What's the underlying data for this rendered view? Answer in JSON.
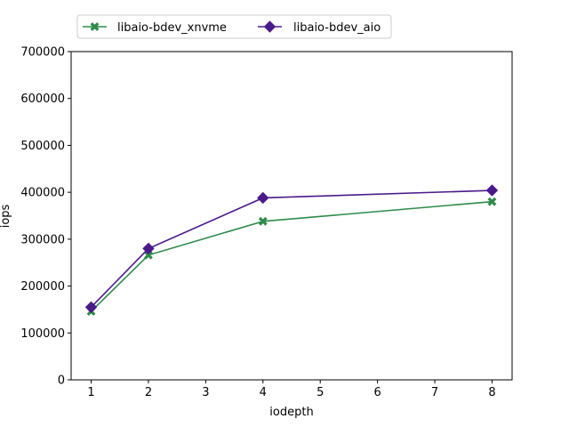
{
  "chart_data": {
    "type": "line",
    "x": [
      1,
      2,
      4,
      8
    ],
    "series": [
      {
        "name": "libaio-bdev_xnvme",
        "values": [
          146000,
          266000,
          338000,
          380000
        ],
        "color": "#2e8b4a",
        "marker": "x-filled"
      },
      {
        "name": "libaio-bdev_aio",
        "values": [
          155000,
          280000,
          388000,
          404000
        ],
        "color": "#4b1a8a",
        "marker": "diamond"
      }
    ],
    "xlabel": "iodepth",
    "ylabel": "iops",
    "xlim": [
      0.65,
      8.35
    ],
    "ylim": [
      0,
      700000
    ],
    "xticks": [
      1,
      2,
      3,
      4,
      5,
      6,
      7,
      8
    ],
    "yticks": [
      0,
      100000,
      200000,
      300000,
      400000,
      500000,
      600000,
      700000
    ],
    "grid": false,
    "legend": "top-left, above plot"
  }
}
